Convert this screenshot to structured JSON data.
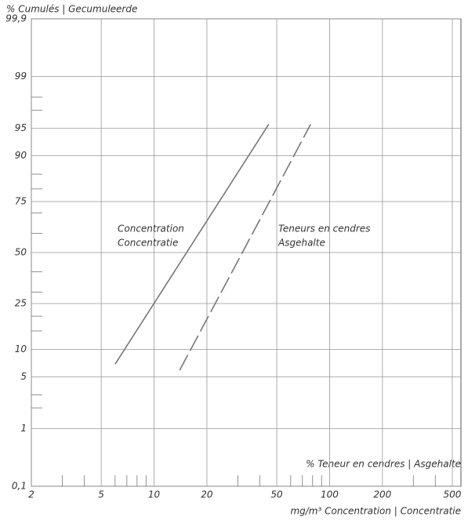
{
  "chart_data": {
    "type": "line",
    "y_label": "% Cumulés | Gecumuleerde",
    "x_label_top": "% Teneur en cendres | Asgehalte",
    "x_label_bottom": "mg/m³ Concentration | Concentratie",
    "xscale": "log",
    "yscale": "probability",
    "xlim": [
      2,
      560
    ],
    "ylim": [
      0.1,
      99.9
    ],
    "xticks": [
      2,
      5,
      10,
      20,
      50,
      100,
      200,
      500
    ],
    "xminor": [
      3,
      4,
      6,
      7,
      8,
      9,
      30,
      40,
      60,
      70,
      80,
      90,
      300,
      400
    ],
    "yticks": [
      {
        "value": 0.1,
        "label": "0,1"
      },
      1,
      5,
      10,
      25,
      50,
      75,
      90,
      95,
      99,
      {
        "value": 99.9,
        "label": "99,9"
      }
    ],
    "yminor": [
      2,
      3,
      15,
      20,
      30,
      40,
      60,
      70,
      80,
      85,
      97,
      98
    ],
    "grid": true,
    "series": [
      {
        "labels": [
          "Concentration",
          "Concentratie"
        ],
        "color": "#777777",
        "style": "solid",
        "x": [
          6,
          45
        ],
        "values": [
          7,
          95.5
        ]
      },
      {
        "labels": [
          "Teneurs en cendres",
          "Asgehalte"
        ],
        "color": "#777777",
        "style": "dashed",
        "x": [
          14,
          78
        ],
        "values": [
          6,
          95.5
        ]
      }
    ]
  }
}
